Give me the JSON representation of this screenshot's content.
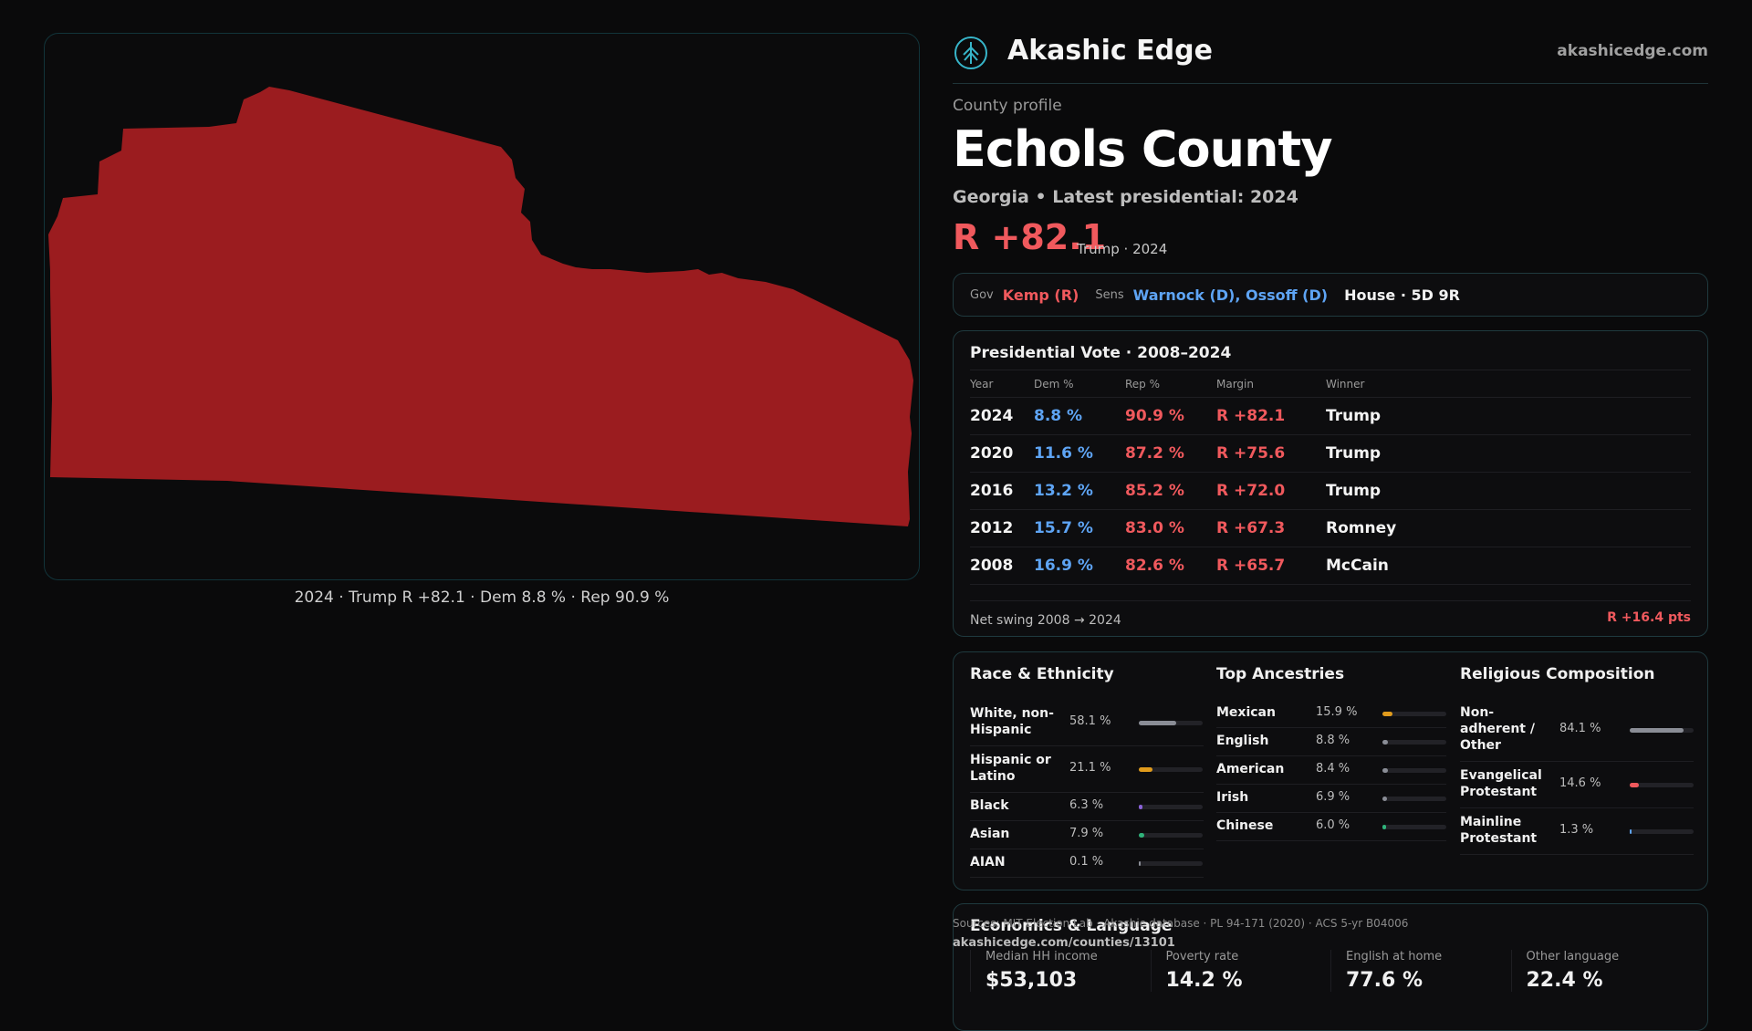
{
  "map": {
    "fill_color": "#9b1c1f",
    "caption": "2024 · Trump R +82.1 · Dem 8.8 % · Rep 90.9 %"
  },
  "brand": {
    "name": "Akashic Edge",
    "site": "akashicedge.com",
    "logo_icon": "tree-logo-icon"
  },
  "profile": {
    "eyebrow": "County profile",
    "title": "Echols County",
    "subtitle": "Georgia • Latest presidential: 2024",
    "margin": "R +82.1",
    "margin_note": "Trump · 2024"
  },
  "officials": {
    "gov_label": "Gov",
    "gov": "Kemp (R)",
    "sens_label": "Sens",
    "sens": "Warnock (D), Ossoff (D)",
    "house": "House · 5D 9R"
  },
  "presidential": {
    "title": "Presidential Vote · 2008–2024",
    "headers": [
      "Year",
      "Dem %",
      "Rep %",
      "Margin",
      "Winner"
    ],
    "rows": [
      {
        "year": "2024",
        "dem": "8.8 %",
        "rep": "90.9 %",
        "margin": "R +82.1",
        "winner": "Trump"
      },
      {
        "year": "2020",
        "dem": "11.6 %",
        "rep": "87.2 %",
        "margin": "R +75.6",
        "winner": "Trump"
      },
      {
        "year": "2016",
        "dem": "13.2 %",
        "rep": "85.2 %",
        "margin": "R +72.0",
        "winner": "Trump"
      },
      {
        "year": "2012",
        "dem": "15.7 %",
        "rep": "83.0 %",
        "margin": "R +67.3",
        "winner": "Romney"
      },
      {
        "year": "2008",
        "dem": "16.9 %",
        "rep": "82.6 %",
        "margin": "R +65.7",
        "winner": "McCain"
      }
    ],
    "swing_label": "Net swing 2008 → 2024",
    "swing_value": "R +16.4 pts"
  },
  "race": {
    "title": "Race & Ethnicity",
    "rows": [
      {
        "label": "White, non-Hispanic",
        "pct": "58.1 %",
        "value": 58.1,
        "color": "#8a8d96"
      },
      {
        "label": "Hispanic or Latino",
        "pct": "21.1 %",
        "value": 21.1,
        "color": "#e09b1c"
      },
      {
        "label": "Black",
        "pct": "6.3 %",
        "value": 6.3,
        "color": "#8a62d8"
      },
      {
        "label": "Asian",
        "pct": "7.9 %",
        "value": 7.9,
        "color": "#2fb27a"
      },
      {
        "label": "AIAN",
        "pct": "0.1 %",
        "value": 0.1,
        "color": "#8a8d96"
      }
    ]
  },
  "ancestry": {
    "title": "Top Ancestries",
    "rows": [
      {
        "label": "Mexican",
        "pct": "15.9 %",
        "value": 15.9,
        "color": "#e09b1c"
      },
      {
        "label": "English",
        "pct": "8.8 %",
        "value": 8.8,
        "color": "#8a8d96"
      },
      {
        "label": "American",
        "pct": "8.4 %",
        "value": 8.4,
        "color": "#8a8d96"
      },
      {
        "label": "Irish",
        "pct": "6.9 %",
        "value": 6.9,
        "color": "#8a8d96"
      },
      {
        "label": "Chinese",
        "pct": "6.0 %",
        "value": 6.0,
        "color": "#2fb27a"
      }
    ]
  },
  "religion": {
    "title": "Religious Composition",
    "rows": [
      {
        "label": "Non-adherent / Other",
        "pct": "84.1 %",
        "value": 84.1,
        "color": "#8a8d96"
      },
      {
        "label": "Evangelical Protestant",
        "pct": "14.6 %",
        "value": 14.6,
        "color": "#f0595d"
      },
      {
        "label": "Mainline Protestant",
        "pct": "1.3 %",
        "value": 1.3,
        "color": "#5ea4f4"
      }
    ]
  },
  "economics": {
    "title": "Economics & Language",
    "cells": [
      {
        "label": "Median HH income",
        "value": "$53,103"
      },
      {
        "label": "Poverty rate",
        "value": "14.2 %"
      },
      {
        "label": "English at home",
        "value": "77.6 %"
      },
      {
        "label": "Other language",
        "value": "22.4 %"
      }
    ]
  },
  "footer": {
    "sources": "Sources: MIT Election Lab · Akashic database · PL 94-171 (2020) · ACS 5-yr B04006",
    "url": "akashicedge.com/counties/13101"
  }
}
